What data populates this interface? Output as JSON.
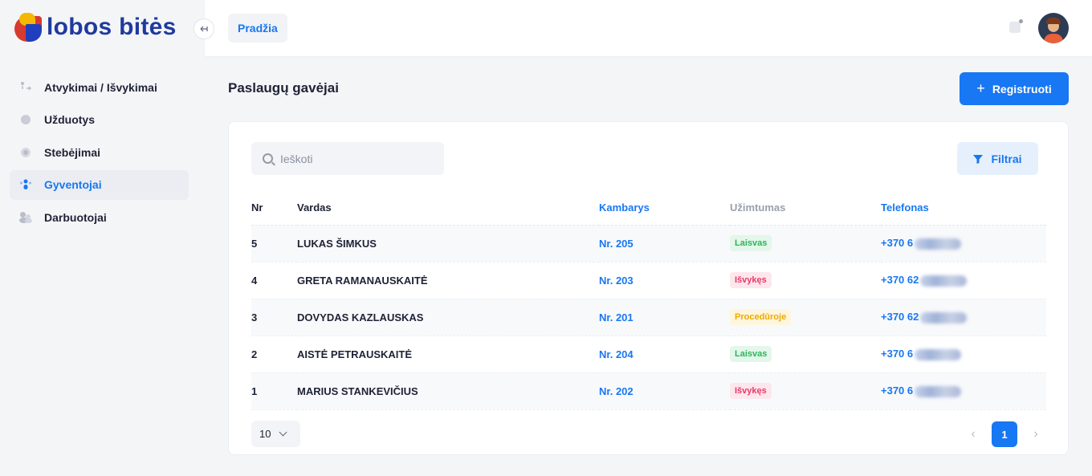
{
  "app": {
    "logo_initial": "G",
    "logo_rest": "lobos bitės"
  },
  "sidebar": {
    "items": [
      {
        "label": "Atvykimai / Išvykimai",
        "icon": "arrivals-icon",
        "active": false
      },
      {
        "label": "Užduotys",
        "icon": "tasks-icon",
        "active": false
      },
      {
        "label": "Stebėjimai",
        "icon": "observations-icon",
        "active": false
      },
      {
        "label": "Gyventojai",
        "icon": "residents-icon",
        "active": true
      },
      {
        "label": "Darbuotojai",
        "icon": "employees-icon",
        "active": false
      }
    ]
  },
  "header": {
    "breadcrumb": "Pradžia"
  },
  "main": {
    "title": "Paslaugų gavėjai",
    "register_label": "Registruoti",
    "search_placeholder": "Ieškoti",
    "filter_label": "Filtrai",
    "columns": {
      "nr": "Nr",
      "name": "Vardas",
      "room": "Kambarys",
      "status": "Užimtumas",
      "phone": "Telefonas"
    },
    "rows": [
      {
        "nr": "5",
        "name": "LUKAS ŠIMKUS",
        "room": "Nr. 205",
        "status": "Laisvas",
        "phone": "+370 6"
      },
      {
        "nr": "4",
        "name": "GRETA RAMANAUSKAITĖ",
        "room": "Nr. 203",
        "status": "Išvykęs",
        "phone": "+370 62"
      },
      {
        "nr": "3",
        "name": "DOVYDAS KAZLAUSKAS",
        "room": "Nr. 201",
        "status": "Procedūroje",
        "phone": "+370 62"
      },
      {
        "nr": "2",
        "name": "AISTĖ PETRAUSKAITĖ",
        "room": "Nr. 204",
        "status": "Laisvas",
        "phone": "+370 6"
      },
      {
        "nr": "1",
        "name": "MARIUS STANKEVIČIUS",
        "room": "Nr. 202",
        "status": "Išvykęs",
        "phone": "+370 6"
      }
    ],
    "page_size": "10",
    "current_page": "1"
  },
  "colors": {
    "accent": "#1877f2",
    "status": {
      "Laisvas": {
        "bg": "#e3f7ea",
        "fg": "#2fb35a"
      },
      "Išvykęs": {
        "bg": "#fde7ec",
        "fg": "#e8386b"
      },
      "Procedūroje": {
        "bg": "#fff6db",
        "fg": "#f0a800"
      }
    }
  }
}
